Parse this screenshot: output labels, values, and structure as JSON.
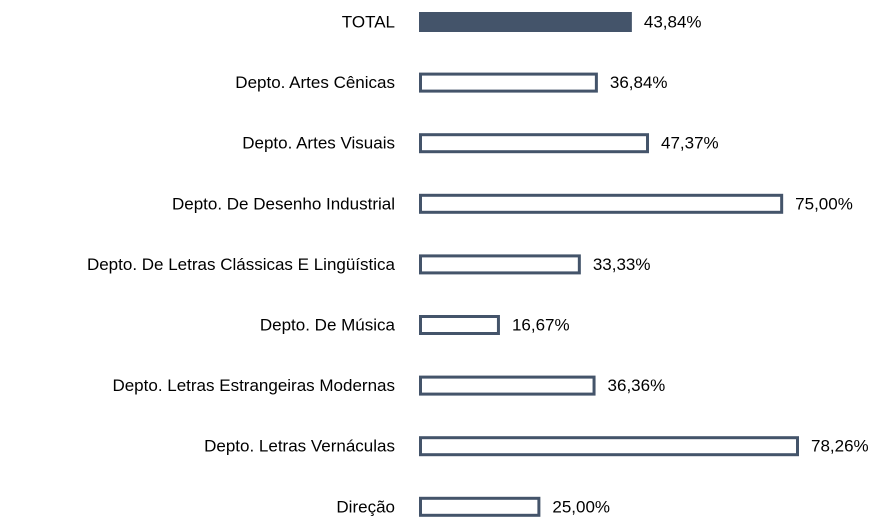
{
  "chart_data": {
    "type": "bar",
    "orientation": "horizontal",
    "categories": [
      "TOTAL",
      "Depto. Artes Cênicas",
      "Depto. Artes Visuais",
      "Depto. De Desenho Industrial",
      "Depto. De Letras Clássicas E Lingüística",
      "Depto. De Música",
      "Depto. Letras Estrangeiras Modernas",
      "Depto. Letras Vernáculas",
      "Direção"
    ],
    "values": [
      43.84,
      36.84,
      47.37,
      75.0,
      33.33,
      16.67,
      36.36,
      78.26,
      25.0
    ],
    "value_labels": [
      "43,84%",
      "36,84%",
      "47,37%",
      "75,00%",
      "33,33%",
      "16,67%",
      "36,36%",
      "78,26%",
      "25,00%"
    ],
    "color": "#44546a",
    "bar_fill": [
      "#44546a",
      "#ffffff",
      "#ffffff",
      "#ffffff",
      "#ffffff",
      "#ffffff",
      "#ffffff",
      "#ffffff",
      "#ffffff"
    ]
  }
}
